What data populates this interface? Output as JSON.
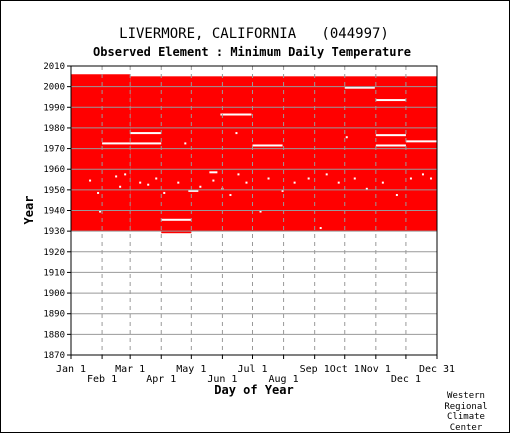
{
  "chart_data": {
    "type": "scatter",
    "title": "LIVERMORE, CALIFORNIA   (044997)",
    "subtitle": "Observed Element : Minimum Daily Temperature",
    "xlabel": "Day of Year",
    "ylabel": "Year",
    "ylim": [
      1870,
      2010
    ],
    "xlim": [
      1,
      366
    ],
    "y_ticks": [
      1870,
      1880,
      1890,
      1900,
      1910,
      1920,
      1930,
      1940,
      1950,
      1960,
      1970,
      1980,
      1990,
      2000,
      2010
    ],
    "x_ticks_row1": [
      {
        "label": "Jan 1",
        "day": 1
      },
      {
        "label": "Mar 1",
        "day": 60
      },
      {
        "label": "May 1",
        "day": 121
      },
      {
        "label": "Jul 1",
        "day": 182
      },
      {
        "label": "Sep 1",
        "day": 244
      },
      {
        "label": "Oct 1",
        "day": 274
      },
      {
        "label": "Nov 1",
        "day": 305
      },
      {
        "label": "Dec 31",
        "day": 366
      }
    ],
    "x_ticks_row2": [
      {
        "label": "Feb 1",
        "day": 32
      },
      {
        "label": "Apr 1",
        "day": 91
      },
      {
        "label": "Jun 1",
        "day": 152
      },
      {
        "label": "Aug 1",
        "day": 213
      },
      {
        "label": "Dec 1",
        "day": 335
      }
    ],
    "grid": true,
    "data_color": "#ff0000",
    "missing_color": "#ffffff",
    "present_blocks": [
      {
        "year_from": 1930,
        "year_to": 2006,
        "day_from": 1,
        "day_to": 60
      },
      {
        "year_from": 1930,
        "year_to": 2005,
        "day_from": 60,
        "day_to": 366
      },
      {
        "year_from": 1929,
        "year_to": 1930,
        "day_from": 91,
        "day_to": 121
      }
    ],
    "missing_segments": [
      {
        "year": 1972.5,
        "day_from": 32,
        "day_to": 60
      },
      {
        "year": 1972.5,
        "day_from": 60,
        "day_to": 91
      },
      {
        "year": 1977.5,
        "day_from": 60,
        "day_to": 91
      },
      {
        "year": 1935.5,
        "day_from": 91,
        "day_to": 121
      },
      {
        "year": 1949.5,
        "day_from": 118,
        "day_to": 128
      },
      {
        "year": 1958.5,
        "day_from": 139,
        "day_to": 147
      },
      {
        "year": 1986.5,
        "day_from": 150,
        "day_to": 181
      },
      {
        "year": 1971.5,
        "day_from": 182,
        "day_to": 212
      },
      {
        "year": 1999.5,
        "day_from": 274,
        "day_to": 304
      },
      {
        "year": 1993.5,
        "day_from": 305,
        "day_to": 335
      },
      {
        "year": 1976.5,
        "day_from": 305,
        "day_to": 335
      },
      {
        "year": 1971.5,
        "day_from": 305,
        "day_to": 335
      },
      {
        "year": 1973.5,
        "day_from": 335,
        "day_to": 366
      }
    ],
    "missing_days": [
      {
        "year": 1954.5,
        "day": 20
      },
      {
        "year": 1948.5,
        "day": 28
      },
      {
        "year": 1939.5,
        "day": 30
      },
      {
        "year": 1956.5,
        "day": 46
      },
      {
        "year": 1957.5,
        "day": 55
      },
      {
        "year": 1951.5,
        "day": 50
      },
      {
        "year": 1953.5,
        "day": 70
      },
      {
        "year": 1952.5,
        "day": 78
      },
      {
        "year": 1955.5,
        "day": 86
      },
      {
        "year": 1948.5,
        "day": 94
      },
      {
        "year": 1953.5,
        "day": 108
      },
      {
        "year": 1972.5,
        "day": 115
      },
      {
        "year": 1951.5,
        "day": 130
      },
      {
        "year": 1954.5,
        "day": 143
      },
      {
        "year": 1950.5,
        "day": 152
      },
      {
        "year": 1947.5,
        "day": 160
      },
      {
        "year": 1977.5,
        "day": 166
      },
      {
        "year": 1957.5,
        "day": 168
      },
      {
        "year": 1953.5,
        "day": 176
      },
      {
        "year": 1939.5,
        "day": 190
      },
      {
        "year": 1955.5,
        "day": 198
      },
      {
        "year": 1949.5,
        "day": 212
      },
      {
        "year": 1953.5,
        "day": 224
      },
      {
        "year": 1955.5,
        "day": 238
      },
      {
        "year": 1931.5,
        "day": 250
      },
      {
        "year": 1957.5,
        "day": 256
      },
      {
        "year": 1953.5,
        "day": 268
      },
      {
        "year": 1975.5,
        "day": 276
      },
      {
        "year": 1955.5,
        "day": 284
      },
      {
        "year": 1950.5,
        "day": 296
      },
      {
        "year": 1953.5,
        "day": 312
      },
      {
        "year": 1947.5,
        "day": 326
      },
      {
        "year": 1955.5,
        "day": 340
      },
      {
        "year": 1957.5,
        "day": 352
      },
      {
        "year": 1955.5,
        "day": 360
      }
    ]
  },
  "credit": [
    "Western",
    "Regional",
    "Climate",
    "Center"
  ]
}
